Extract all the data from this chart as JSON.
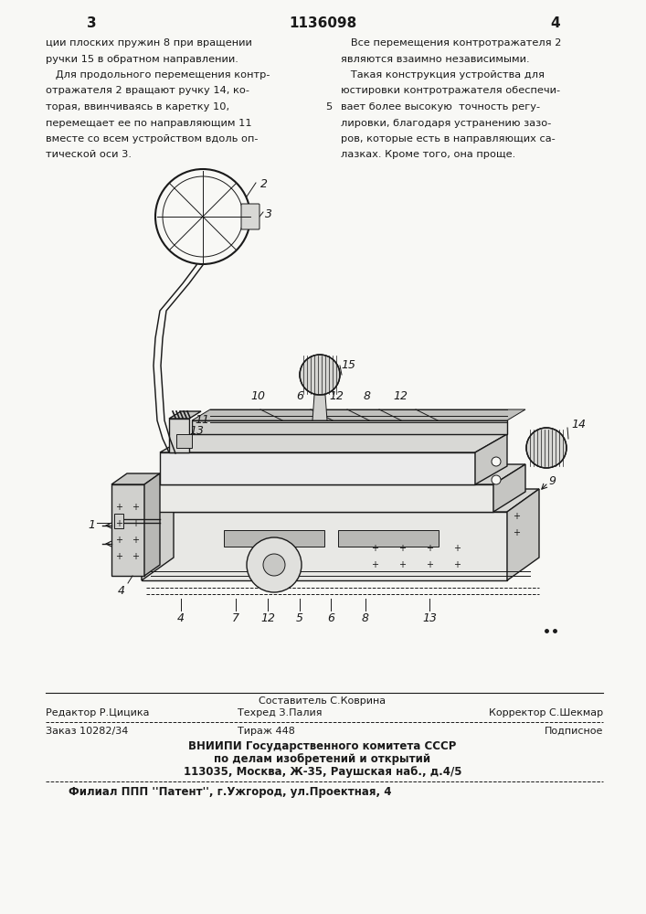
{
  "page_number_left": "3",
  "page_number_center": "1136098",
  "page_number_right": "4",
  "col_left_text": [
    "ции плоских пружин 8 при вращении",
    "ручки 15 в обратном направлении.",
    "   Для продольного перемещения контр-",
    "отражателя 2 вращают ручку 14, ко-",
    "торая, ввинчиваясь в каретку 10,",
    "перемещает ее по направляющим 11",
    "вместе со всем устройством вдоль оп-",
    "тической оси 3."
  ],
  "col_right_text": [
    "   Все перемещения контротражателя 2",
    "являются взаимно независимыми.",
    "   Такая конструкция устройства для",
    "юстировки контротражателя обеспечи-",
    "вает более высокую  точность регу-",
    "лировки, благодаря устранению зазо-",
    "ров, которые есть в направляющих са-",
    "лазках. Кроме того, она проще."
  ],
  "line_num_5": "5",
  "footer_editor": "Редактор Р.Цицика",
  "footer_compiler": "Составитель С.Коврина",
  "footer_techred": "Техред З.Палия",
  "footer_corrector": "Корректор С.Шекмар",
  "footer_order": "Заказ 10282/34",
  "footer_tirazh": "Тираж 448",
  "footer_podpisnoe": "Подписное",
  "footer_org1": "ВНИИПИ Государственного комитета СССР",
  "footer_org2": "по делам изобретений и открытий",
  "footer_org3": "113035, Москва, Ж-35, Раушская наб., д.4/5",
  "footer_filial": "Филиал ППП ''Патент'', г.Ужгород, ул.Проектная, 4",
  "bg_color": "#f8f8f5",
  "text_color": "#1a1a1a"
}
